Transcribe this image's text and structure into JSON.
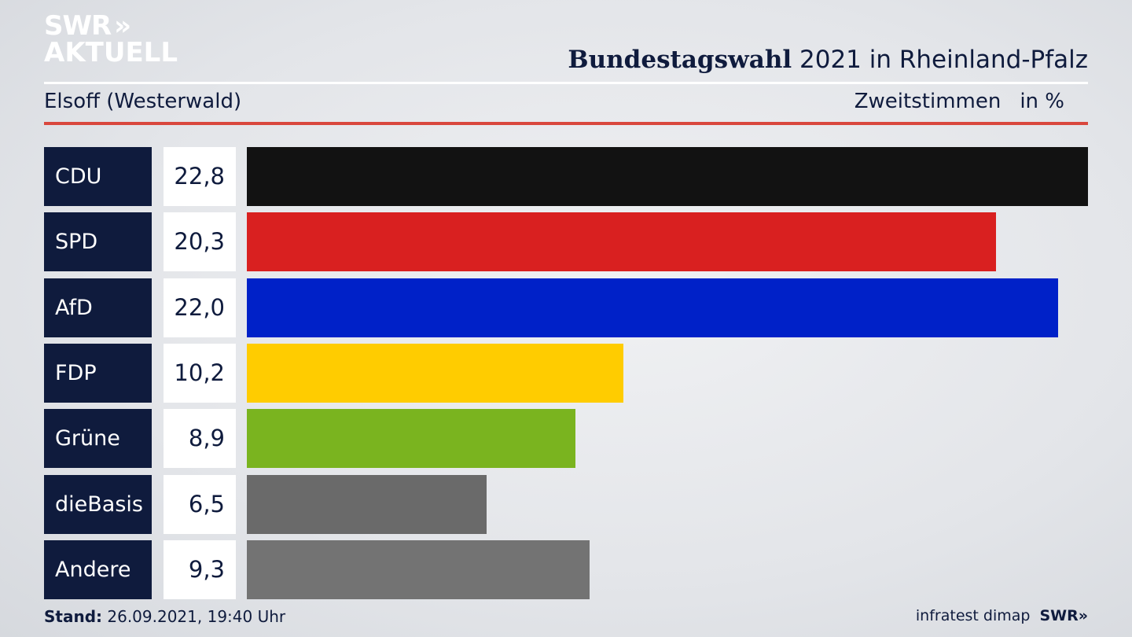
{
  "logo": {
    "line1": "SWR",
    "chevrons": "»",
    "line2": "AKTUELL"
  },
  "header": {
    "title_strong": "Bundestagswahl",
    "title_rest": " 2021 in Rheinland-Pfalz",
    "subtitle": "Elsoff (Westerwald)",
    "metric": "Zweitstimmen",
    "unit": "in %"
  },
  "chart_data": {
    "type": "bar",
    "orientation": "horizontal",
    "categories": [
      "CDU",
      "SPD",
      "AfD",
      "FDP",
      "Grüne",
      "dieBasis",
      "Andere"
    ],
    "values": [
      22.8,
      20.3,
      22.0,
      10.2,
      8.9,
      6.5,
      9.3
    ],
    "value_labels": [
      "22,8",
      "20,3",
      "22,0",
      "10,2",
      "8,9",
      "6,5",
      "9,3"
    ],
    "colors": [
      "#121212",
      "#d92020",
      "#0021c8",
      "#ffcc00",
      "#7ab41f",
      "#6a6a6a",
      "#737373"
    ],
    "max_value": 22.8
  },
  "footer": {
    "stand_label": "Stand:",
    "stand_value": " 26.09.2021, 19:40 Uhr",
    "source": "infratest dimap",
    "brand": "SWR»"
  }
}
